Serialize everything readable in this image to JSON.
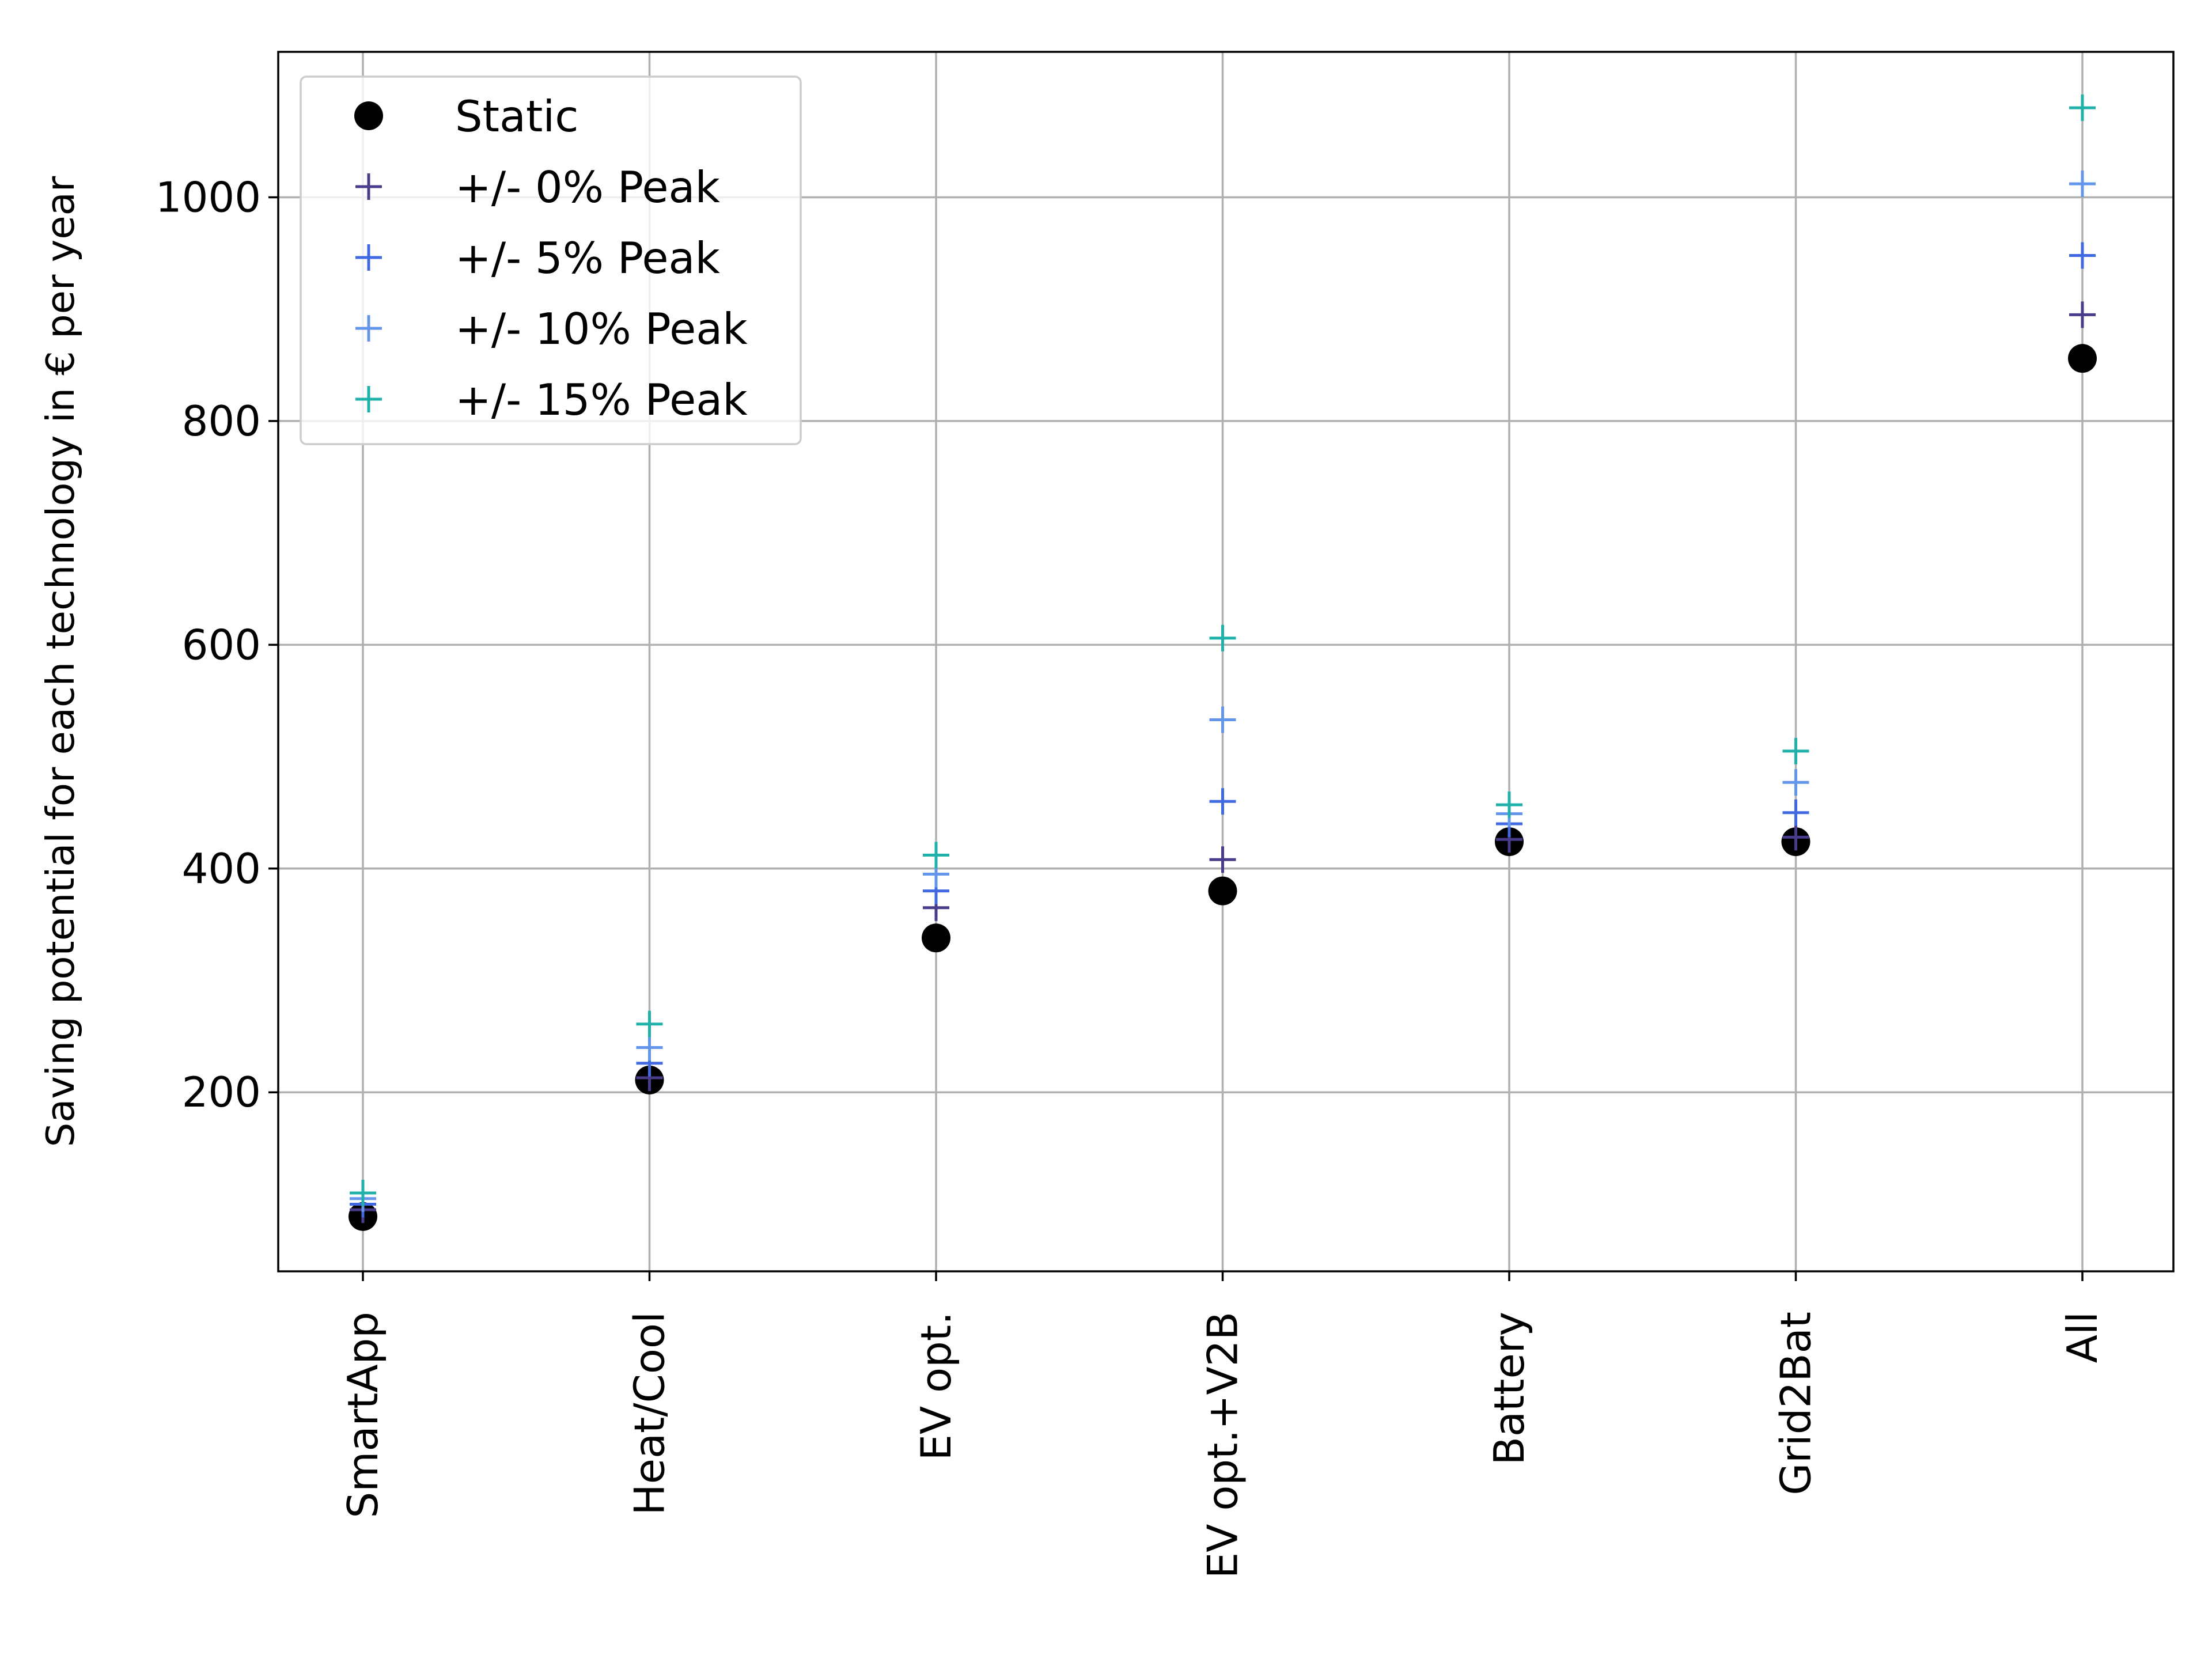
{
  "chart_data": {
    "type": "scatter",
    "title": "",
    "xlabel": "",
    "ylabel": "Saving potential for each technology in € per year",
    "categories": [
      "SmartApp",
      "Heat/Cool",
      "EV opt.",
      "EV opt.+V2B",
      "Battery",
      "Grid2Bat",
      "All"
    ],
    "ylim": [
      40,
      1130
    ],
    "yticks": [
      200,
      400,
      600,
      800,
      1000
    ],
    "grid": true,
    "legend_position": "upper left",
    "series": [
      {
        "name": "Static",
        "marker": "circle",
        "color": "#000000",
        "values": [
          89,
          211,
          338,
          380,
          424,
          424,
          856
        ]
      },
      {
        "name": "+/- 0% Peak",
        "marker": "plus",
        "color": "#483d8b",
        "values": [
          95,
          213,
          365,
          408,
          426,
          428,
          895
        ]
      },
      {
        "name": "+/- 5% Peak",
        "marker": "plus",
        "color": "#4169e1",
        "values": [
          100,
          226,
          380,
          460,
          440,
          450,
          948
        ]
      },
      {
        "name": "+/- 10% Peak",
        "marker": "plus",
        "color": "#6495ed",
        "values": [
          105,
          240,
          395,
          533,
          449,
          477,
          1012
        ]
      },
      {
        "name": "+/- 15% Peak",
        "marker": "plus",
        "color": "#20b2aa",
        "values": [
          110,
          261,
          412,
          606,
          457,
          505,
          1080
        ]
      }
    ]
  }
}
